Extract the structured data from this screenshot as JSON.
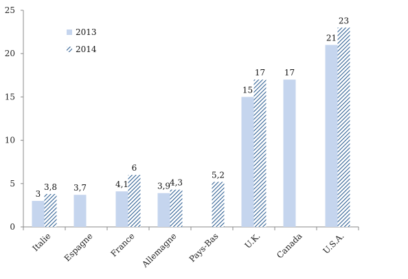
{
  "chart_data": {
    "type": "bar",
    "categories": [
      "Italie",
      "Espagne",
      "France",
      "Allemagne",
      "Pays-Bas",
      "U.K.",
      "Canada",
      "U.S.A."
    ],
    "series": [
      {
        "name": "2013",
        "values": [
          3,
          3.7,
          4.1,
          3.9,
          null,
          15,
          17,
          21
        ],
        "labels": [
          "3",
          "",
          "4,1",
          "3,9",
          "",
          "15",
          "17",
          "21"
        ]
      },
      {
        "name": "2014",
        "values": [
          3.8,
          null,
          6,
          4.3,
          5.2,
          17,
          null,
          23
        ],
        "labels": [
          "3,8",
          "",
          "6",
          "4,3",
          "5,2",
          "17",
          "",
          "23"
        ]
      }
    ],
    "espagne_label": "3,7",
    "yticks": [
      "0",
      "5",
      "10",
      "15",
      "20",
      "25"
    ],
    "ylim": [
      0,
      25
    ],
    "grid": false,
    "legend": "top-left",
    "colors": {
      "series_2013": "#c5d5ee",
      "series_2014": "#2e5f93",
      "axis": "#888888"
    }
  }
}
